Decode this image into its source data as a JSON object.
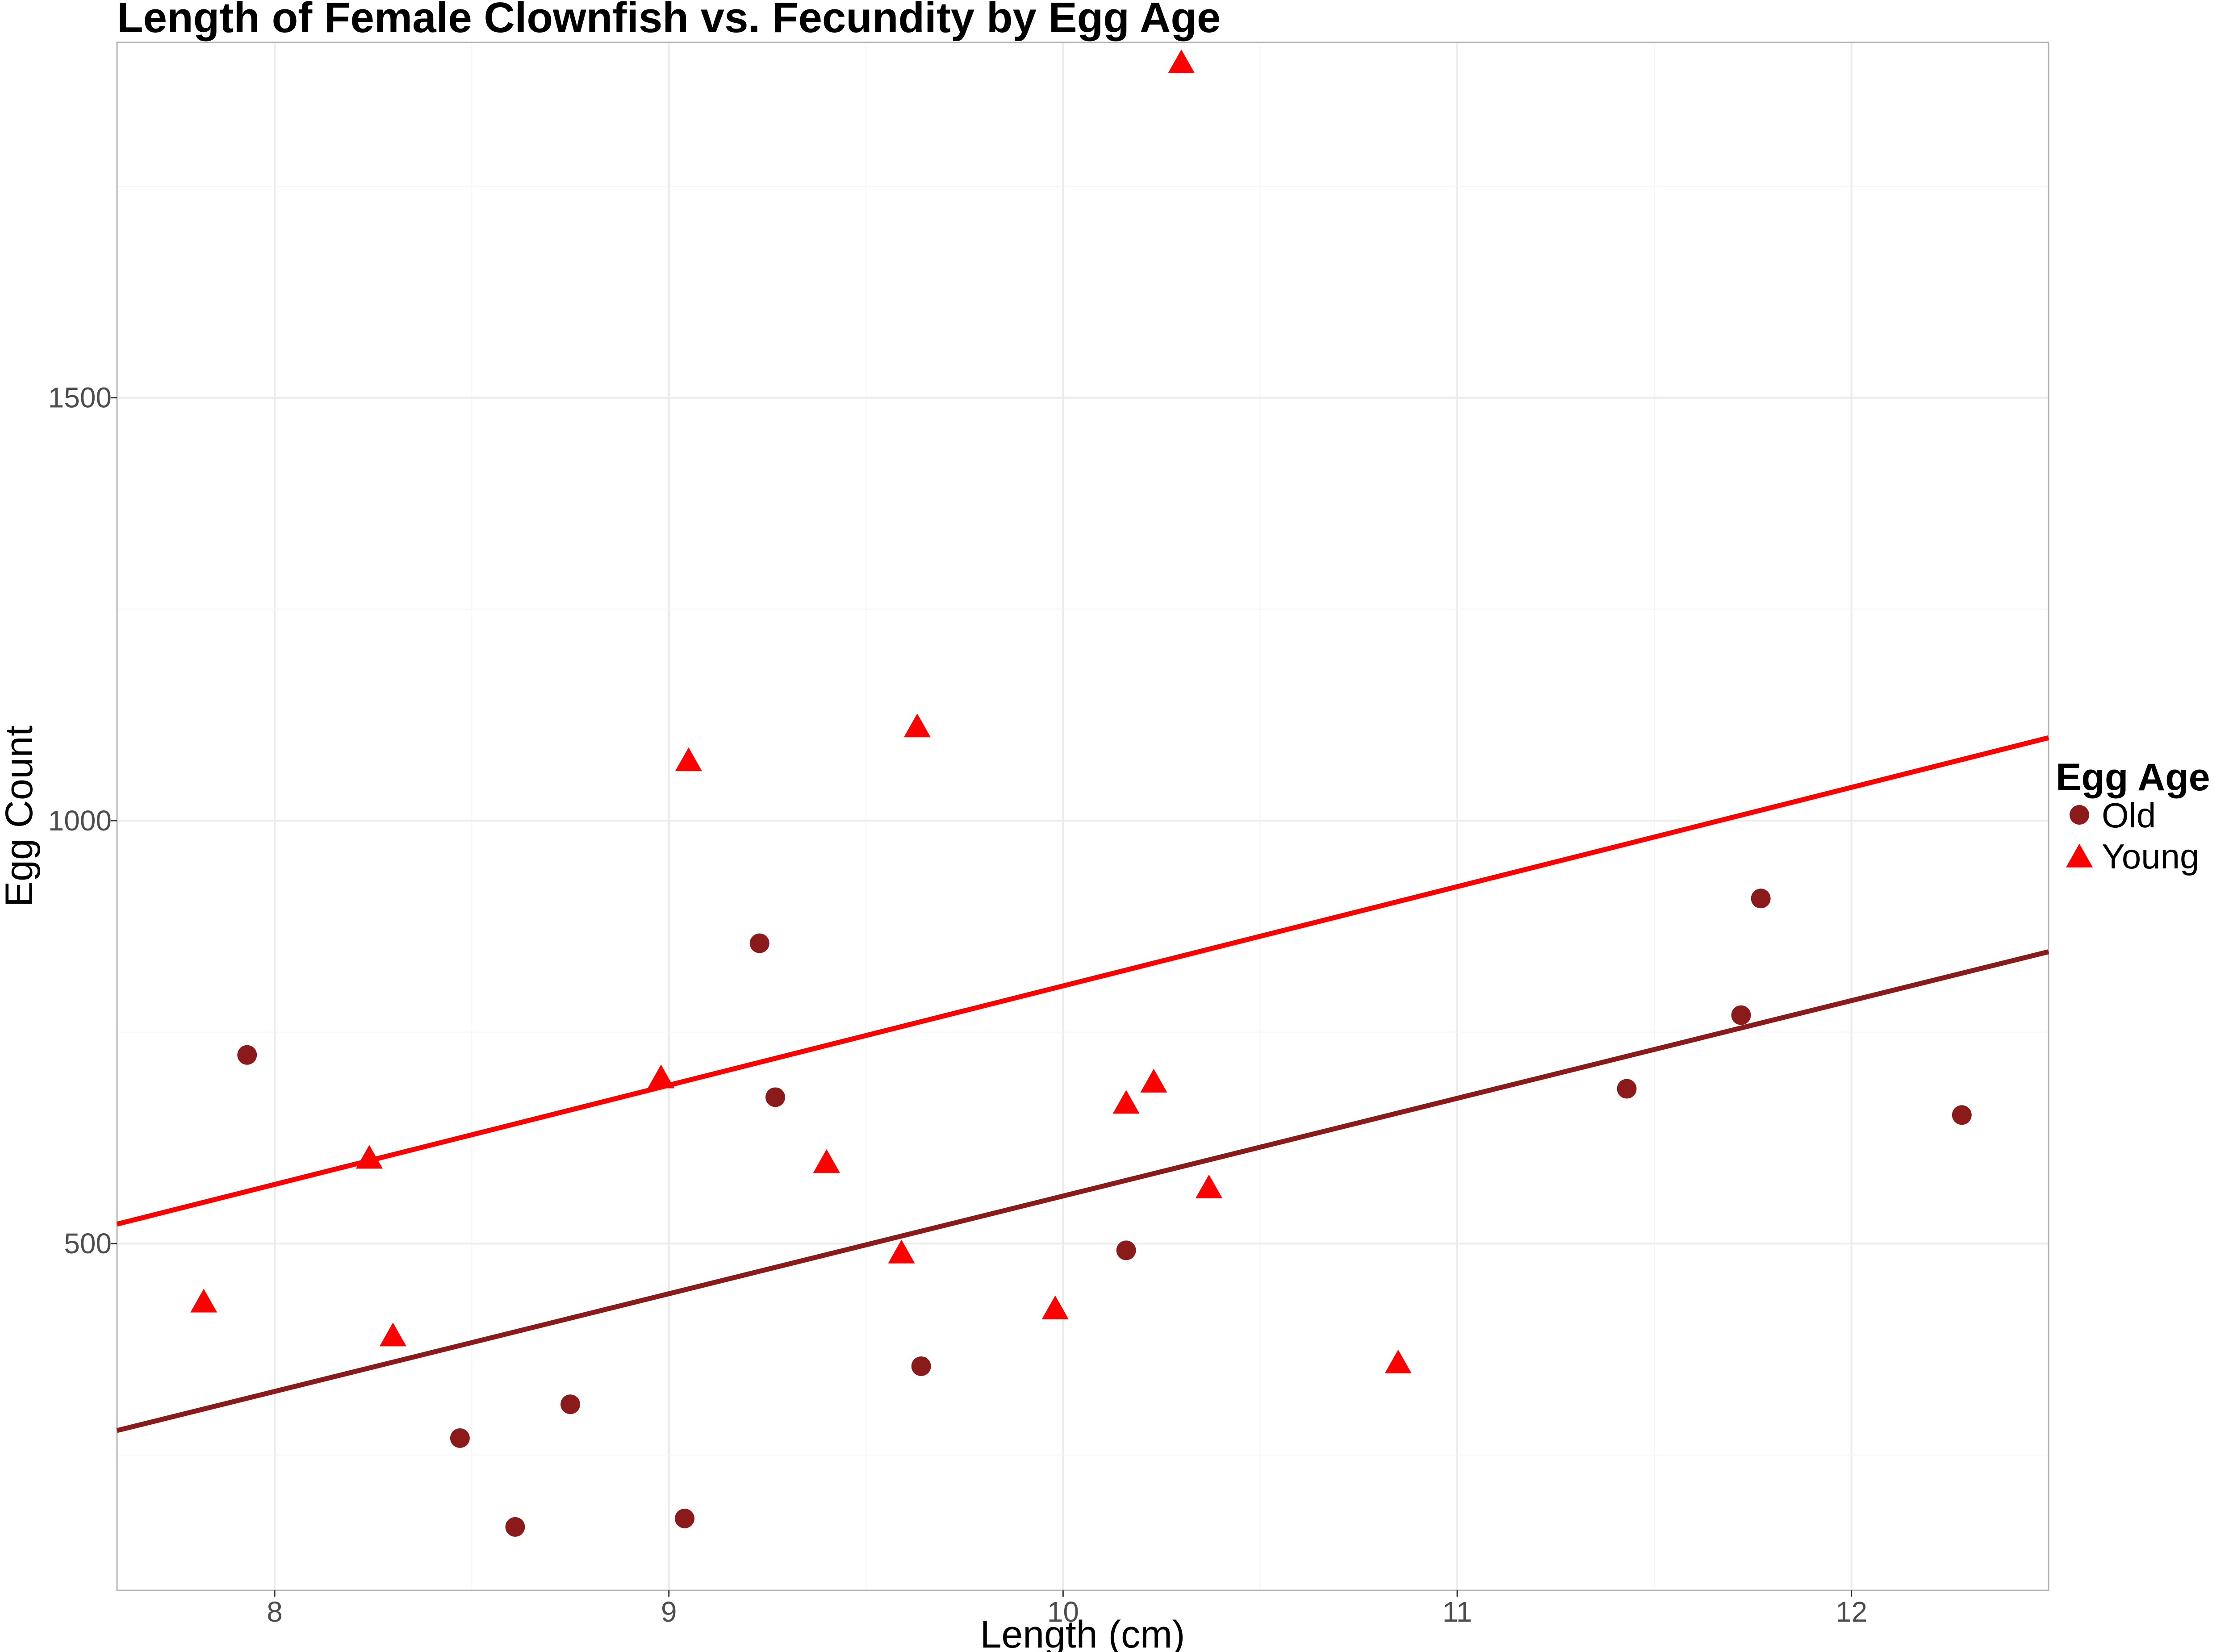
{
  "chart_data": {
    "type": "scatter",
    "title": "Length of Female Clownfish vs. Fecundity by Egg Age",
    "xlabel": "Length (cm)",
    "ylabel": "Egg Count",
    "xlim": [
      7.6,
      12.5
    ],
    "ylim": [
      90,
      1920
    ],
    "x_ticks": [
      8,
      9,
      10,
      11,
      12
    ],
    "y_ticks": [
      500,
      1000,
      1500
    ],
    "grid": true,
    "legend": {
      "title": "Egg Age",
      "position": "right",
      "entries": [
        {
          "name": "Old",
          "shape": "circle",
          "color": "#8B1A1A"
        },
        {
          "name": "Young",
          "shape": "triangle",
          "color": "#FF0000"
        }
      ]
    },
    "series": [
      {
        "name": "Old",
        "color": "#8B1A1A",
        "shape": "circle",
        "points": [
          {
            "x": 7.93,
            "y": 723
          },
          {
            "x": 8.47,
            "y": 270
          },
          {
            "x": 8.61,
            "y": 165
          },
          {
            "x": 8.75,
            "y": 310
          },
          {
            "x": 9.04,
            "y": 175
          },
          {
            "x": 9.23,
            "y": 855
          },
          {
            "x": 9.27,
            "y": 673
          },
          {
            "x": 9.64,
            "y": 355
          },
          {
            "x": 10.16,
            "y": 492
          },
          {
            "x": 11.43,
            "y": 683
          },
          {
            "x": 11.72,
            "y": 770
          },
          {
            "x": 11.77,
            "y": 908
          },
          {
            "x": 12.28,
            "y": 652
          }
        ],
        "trend": {
          "x": [
            7.6,
            12.5
          ],
          "y": [
            279,
            845
          ]
        }
      },
      {
        "name": "Young",
        "color": "#FF0000",
        "shape": "triangle",
        "points": [
          {
            "x": 7.82,
            "y": 430
          },
          {
            "x": 8.24,
            "y": 600
          },
          {
            "x": 8.3,
            "y": 390
          },
          {
            "x": 8.98,
            "y": 695
          },
          {
            "x": 9.05,
            "y": 1070
          },
          {
            "x": 9.4,
            "y": 595
          },
          {
            "x": 9.59,
            "y": 488
          },
          {
            "x": 9.63,
            "y": 1110
          },
          {
            "x": 9.98,
            "y": 422
          },
          {
            "x": 10.16,
            "y": 665
          },
          {
            "x": 10.23,
            "y": 690
          },
          {
            "x": 10.3,
            "y": 1895
          },
          {
            "x": 10.37,
            "y": 565
          },
          {
            "x": 10.85,
            "y": 358
          }
        ],
        "trend": {
          "x": [
            7.6,
            12.5
          ],
          "y": [
            523,
            1098
          ]
        }
      }
    ]
  }
}
